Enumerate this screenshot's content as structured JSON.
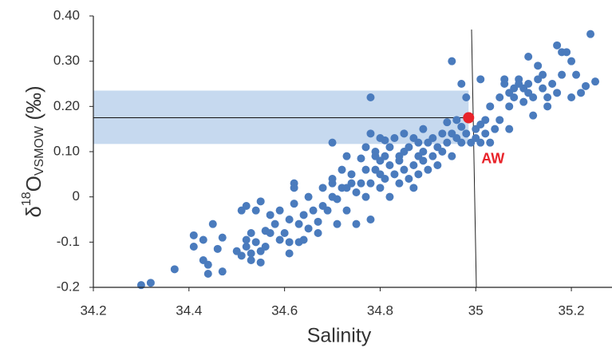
{
  "chart_data": {
    "type": "scatter",
    "x_label": "Salinity",
    "y_label": {
      "prefix": "δ",
      "sup": "18",
      "main": "O",
      "sub": "VSMOW",
      "suffix": " (‰)"
    },
    "xlim": [
      34.2,
      35.285
    ],
    "ylim": [
      -0.2,
      0.4
    ],
    "xticks": [
      34.2,
      34.4,
      34.6,
      34.8,
      35,
      35.2
    ],
    "yticks": [
      {
        "value": 0.4,
        "label": "0.40"
      },
      {
        "value": 0.3,
        "label": "0.30"
      },
      {
        "value": 0.2,
        "label": "0.20"
      },
      {
        "value": 0.1,
        "label": "0.10"
      },
      0,
      -0.1,
      -0.2
    ],
    "color": "#4a7bbd",
    "shaded_range": [
      0.117,
      0.235
    ],
    "shaded_color": "#c6d9ef",
    "reference_line": 0.175,
    "highlight": {
      "x": 34.985,
      "y": 0.175,
      "color": "#e8232a",
      "label": "AW"
    },
    "x": [
      34.3,
      34.32,
      34.37,
      34.41,
      34.41,
      34.43,
      34.43,
      34.44,
      34.44,
      34.45,
      34.46,
      34.47,
      34.47,
      34.5,
      34.51,
      34.51,
      34.52,
      34.52,
      34.52,
      34.53,
      34.53,
      34.53,
      34.54,
      34.54,
      34.55,
      34.55,
      34.55,
      34.56,
      34.56,
      34.57,
      34.57,
      34.58,
      34.59,
      34.59,
      34.6,
      34.61,
      34.61,
      34.62,
      34.62,
      34.62,
      34.63,
      34.63,
      34.64,
      34.65,
      34.65,
      34.66,
      34.67,
      34.67,
      34.68,
      34.68,
      34.69,
      34.7,
      34.7,
      34.7,
      34.71,
      34.71,
      34.72,
      34.72,
      34.73,
      34.73,
      34.73,
      34.74,
      34.74,
      34.75,
      34.75,
      34.76,
      34.76,
      34.77,
      34.77,
      34.77,
      34.78,
      34.78,
      34.78,
      34.79,
      34.79,
      34.79,
      34.8,
      34.8,
      34.8,
      34.8,
      34.81,
      34.81,
      34.81,
      34.82,
      34.82,
      34.82,
      34.83,
      34.83,
      34.84,
      34.84,
      34.84,
      34.85,
      34.85,
      34.85,
      34.86,
      34.86,
      34.87,
      34.87,
      34.87,
      34.88,
      34.88,
      34.88,
      34.89,
      34.89,
      34.89,
      34.9,
      34.9,
      34.91,
      34.91,
      34.92,
      34.92,
      34.93,
      34.93,
      34.94,
      34.94,
      34.95,
      34.95,
      34.95,
      34.96,
      34.96,
      34.97,
      34.97,
      34.97,
      34.98,
      34.98,
      34.99,
      35.0,
      35.0,
      35.01,
      35.01,
      35.01,
      35.02,
      35.02,
      35.03,
      35.03,
      35.04,
      35.05,
      35.05,
      35.06,
      35.06,
      35.07,
      35.07,
      35.07,
      35.08,
      35.08,
      35.09,
      35.09,
      35.1,
      35.1,
      35.11,
      35.11,
      35.11,
      35.12,
      35.12,
      35.13,
      35.13,
      35.14,
      35.14,
      35.15,
      35.15,
      35.16,
      35.17,
      35.17,
      35.18,
      35.18,
      35.19,
      35.2,
      35.2,
      35.21,
      35.22,
      35.23,
      35.24,
      35.25,
      34.78,
      34.7,
      34.61,
      34.64
    ],
    "values": [
      -0.195,
      -0.19,
      -0.16,
      -0.085,
      -0.11,
      -0.095,
      -0.14,
      -0.15,
      -0.17,
      -0.06,
      -0.115,
      -0.09,
      -0.165,
      -0.12,
      -0.13,
      -0.03,
      -0.02,
      -0.095,
      -0.11,
      -0.14,
      -0.125,
      -0.08,
      -0.03,
      -0.1,
      -0.01,
      -0.12,
      -0.145,
      -0.075,
      -0.11,
      -0.08,
      -0.04,
      -0.06,
      -0.03,
      -0.095,
      -0.08,
      -0.125,
      -0.05,
      -0.015,
      0.03,
      0.02,
      -0.06,
      -0.1,
      -0.04,
      -0.07,
      0.0,
      -0.03,
      -0.08,
      -0.055,
      -0.02,
      0.02,
      -0.03,
      0.0,
      0.03,
      0.04,
      -0.005,
      -0.06,
      0.06,
      0.02,
      0.02,
      0.09,
      -0.03,
      0.03,
      0.05,
      0.01,
      -0.06,
      0.03,
      0.085,
      0.0,
      0.06,
      0.11,
      0.03,
      0.14,
      -0.05,
      0.06,
      0.09,
      0.1,
      0.02,
      0.05,
      0.08,
      0.13,
      0.04,
      0.09,
      0.125,
      0.0,
      0.07,
      0.11,
      0.05,
      0.13,
      0.08,
      0.09,
      0.03,
      0.06,
      0.1,
      0.14,
      0.04,
      0.11,
      0.02,
      0.07,
      0.13,
      0.05,
      0.09,
      0.12,
      0.08,
      0.1,
      0.15,
      0.06,
      0.12,
      0.09,
      0.13,
      0.11,
      0.07,
      0.14,
      0.1,
      0.12,
      0.165,
      0.3,
      0.14,
      0.09,
      0.13,
      0.17,
      0.25,
      0.12,
      0.155,
      0.14,
      0.22,
      0.12,
      0.15,
      0.13,
      0.26,
      0.12,
      0.16,
      0.17,
      0.14,
      0.12,
      0.2,
      0.15,
      0.22,
      0.17,
      0.26,
      0.25,
      0.2,
      0.23,
      0.15,
      0.24,
      0.22,
      0.26,
      0.25,
      0.21,
      0.24,
      0.31,
      0.25,
      0.23,
      0.22,
      0.18,
      0.26,
      0.29,
      0.27,
      0.24,
      0.2,
      0.22,
      0.25,
      0.335,
      0.23,
      0.32,
      0.27,
      0.32,
      0.3,
      0.22,
      0.27,
      0.23,
      0.245,
      0.36,
      0.255,
      0.22,
      0.12,
      -0.1,
      -0.095
    ]
  }
}
